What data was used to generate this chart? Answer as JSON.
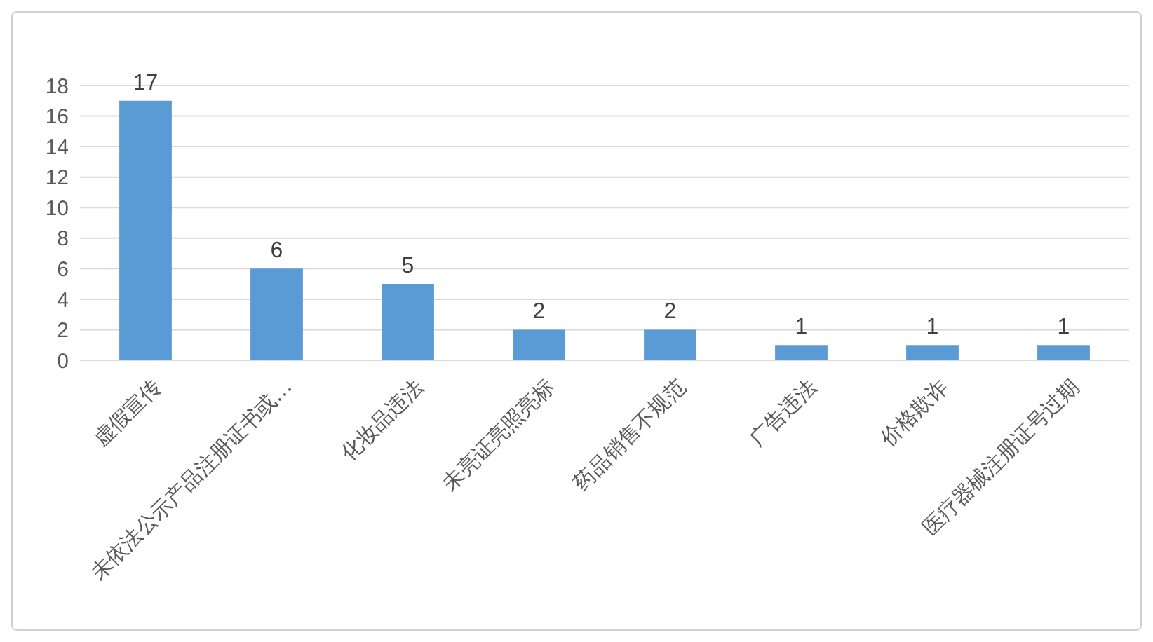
{
  "chart_data": {
    "type": "bar",
    "categories": [
      "虚假宣传",
      "未依法公示产品注册证书或…",
      "化妆品违法",
      "未亮证亮照亮标",
      "药品销售不规范",
      "广告违法",
      "价格欺诈",
      "医疗器械注册证号过期"
    ],
    "values": [
      17,
      6,
      5,
      2,
      2,
      1,
      1,
      1
    ],
    "color": "#5b9bd5",
    "ylim": [
      0,
      18
    ],
    "yticks": [
      0,
      2,
      4,
      6,
      8,
      10,
      12,
      14,
      16,
      18
    ],
    "grid": "y",
    "data_labels": true
  }
}
